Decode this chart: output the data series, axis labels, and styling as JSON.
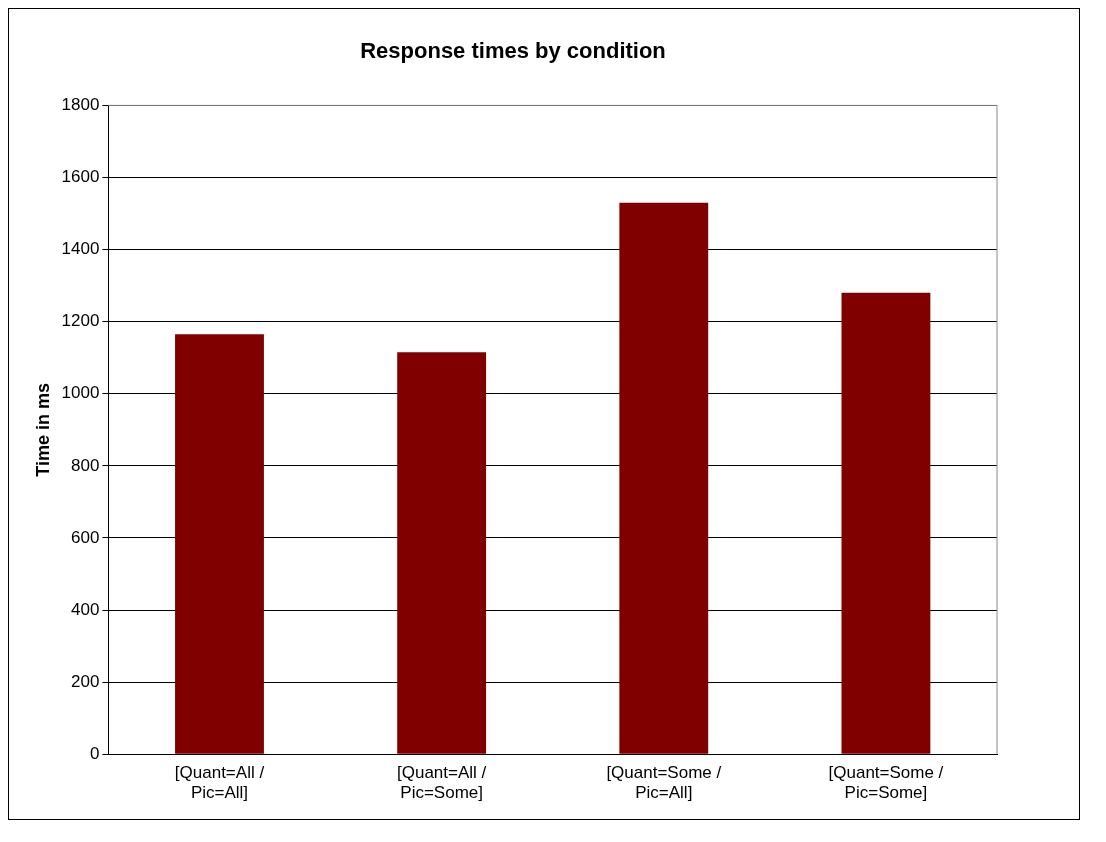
{
  "chart_data": {
    "type": "bar",
    "title": "Response times by condition",
    "ylabel": "Time in ms",
    "categories": [
      "[Quant=All / Pic=All]",
      "[Quant=All / Pic=Some]",
      "[Quant=Some / Pic=All]",
      "[Quant=Some / Pic=Some]"
    ],
    "values": [
      1165,
      1115,
      1530,
      1280
    ],
    "color": "#800000",
    "ylim": [
      0,
      1800
    ],
    "yticks": [
      0,
      200,
      400,
      600,
      800,
      1000,
      1200,
      1400,
      1600,
      1800
    ],
    "grid": "y",
    "legend": false
  }
}
